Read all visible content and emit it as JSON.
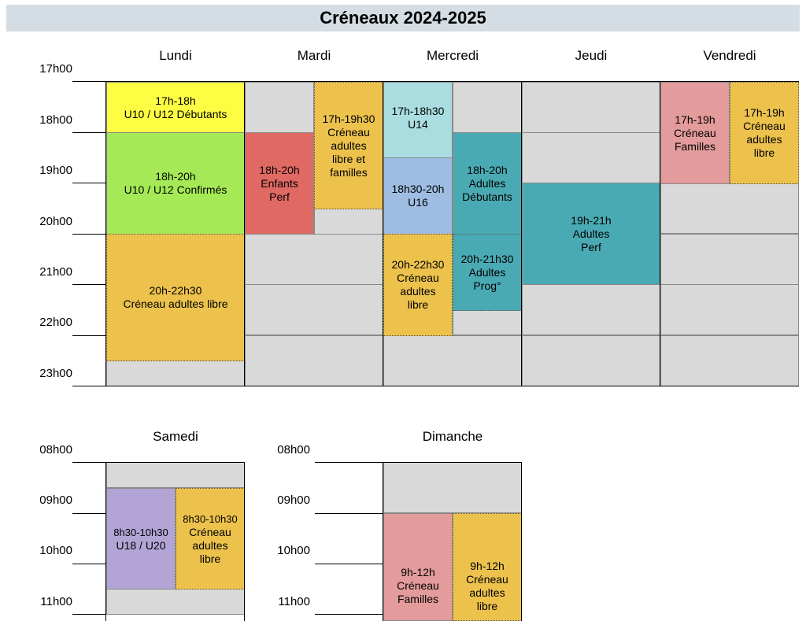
{
  "title": "Créneaux 2024-2025",
  "week": {
    "days": [
      "Lundi",
      "Mardi",
      "Mercredi",
      "Jeudi",
      "Vendredi"
    ],
    "hours": [
      "17h00",
      "18h00",
      "19h00",
      "20h00",
      "21h00",
      "22h00",
      "23h00"
    ]
  },
  "weekend": {
    "days": [
      "Samedi",
      "Dimanche"
    ],
    "hours": [
      "08h00",
      "09h00",
      "10h00",
      "11h00"
    ]
  },
  "slots": {
    "lundi_u10_deb": [
      "17h-18h",
      "U10 / U12 Débutants"
    ],
    "lundi_u10_conf": [
      "18h-20h",
      "U10 / U12 Confirmés"
    ],
    "lundi_adultes": [
      "20h-22h30",
      "Créneau adultes libre"
    ],
    "mardi_enfants": [
      "18h-20h",
      "Enfants",
      "Perf"
    ],
    "mardi_adultes_familles": [
      "17h-19h30",
      "Créneau",
      "adultes",
      "libre et",
      "familles"
    ],
    "mercredi_u14": [
      "17h-18h30",
      "U14"
    ],
    "mercredi_u16": [
      "18h30-20h",
      "U16"
    ],
    "mercredi_adultes_deb": [
      "18h-20h",
      "Adultes",
      "Débutants"
    ],
    "mercredi_adultes_libre": [
      "20h-22h30",
      "Créneau",
      "adultes",
      "libre"
    ],
    "mercredi_adultes_prog": [
      "20h-21h30",
      "Adultes",
      "Prog°"
    ],
    "jeudi_perf": [
      "19h-21h",
      "Adultes",
      "Perf"
    ],
    "vendredi_familles": [
      "17h-19h",
      "Créneau",
      "Familles"
    ],
    "vendredi_adultes": [
      "17h-19h",
      "Créneau",
      "adultes",
      "libre"
    ],
    "samedi_u18": [
      "8h30-10h30",
      "U18 / U20"
    ],
    "samedi_adultes": [
      "8h30-10h30",
      "Créneau",
      "adultes",
      "libre"
    ],
    "dimanche_familles": [
      "9h-12h",
      "Créneau",
      "Familles"
    ],
    "dimanche_adultes": [
      "9h-12h",
      "Créneau",
      "adultes",
      "libre"
    ]
  },
  "colors": {
    "gray": "#d9d9d9",
    "yellow": "#fdfd43",
    "light_green": "#a5ea56",
    "orange": "#ecc24d",
    "red": "#e06963",
    "light_blue": "#a9dde0",
    "blue": "#9fbde2",
    "teal": "#4aaab3",
    "pink": "#e39b9b",
    "purple": "#b2a5d6",
    "title_bar": "#d4dde3"
  }
}
